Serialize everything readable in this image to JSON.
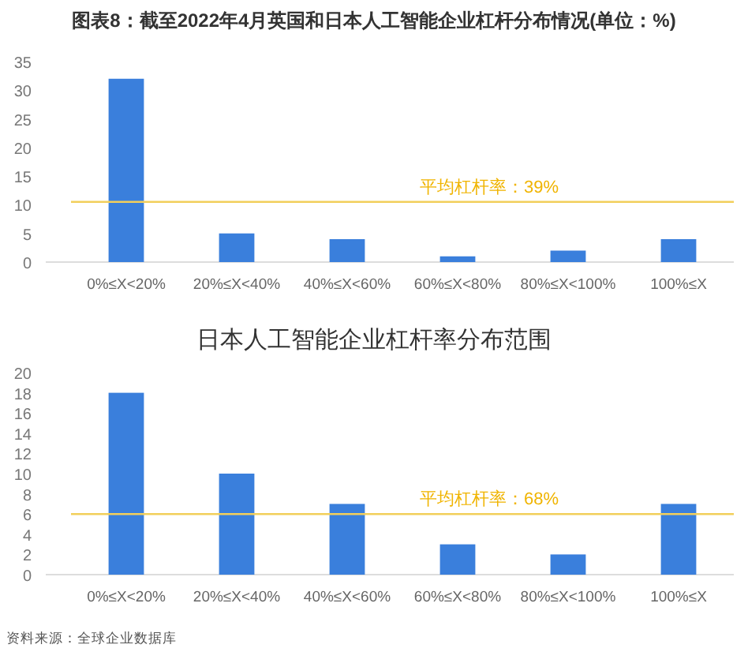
{
  "chart_data": [
    {
      "type": "bar",
      "title": "图表8：截至2022年4月英国和日本人工智能企业杠杆分布情况(单位：%)",
      "categories": [
        "0%≤X<20%",
        "20%≤X<40%",
        "40%≤X<60%",
        "60%≤X<80%",
        "80%≤X<100%",
        "100%≤X"
      ],
      "series": [
        {
          "color": "#3a7fdc",
          "values": [
            32,
            5,
            4,
            1,
            2,
            4
          ]
        }
      ],
      "ylim": [
        0,
        35
      ],
      "yticks": [
        0,
        5,
        10,
        15,
        20,
        25,
        30,
        35
      ],
      "grid": false,
      "ref_lines": [
        {
          "axis": "y",
          "value": 10.5,
          "label": "平均杠杆率：39%",
          "color": "#f2cf5b"
        }
      ]
    },
    {
      "type": "bar",
      "title": "日本人工智能企业杠杆率分布范围",
      "categories": [
        "0%≤X<20%",
        "20%≤X<40%",
        "40%≤X<60%",
        "60%≤X<80%",
        "80%≤X<100%",
        "100%≤X"
      ],
      "series": [
        {
          "color": "#3a7fdc",
          "values": [
            18,
            10,
            7,
            3,
            2,
            7
          ]
        }
      ],
      "ylim": [
        0,
        20
      ],
      "yticks": [
        0,
        2,
        4,
        6,
        8,
        10,
        12,
        14,
        16,
        18,
        20
      ],
      "grid": false,
      "ref_lines": [
        {
          "axis": "y",
          "value": 6,
          "label": "平均杠杆率：68%",
          "color": "#f2cf5b"
        }
      ],
      "annotations": [
        "资料来源：全球企业数据库"
      ]
    }
  ]
}
